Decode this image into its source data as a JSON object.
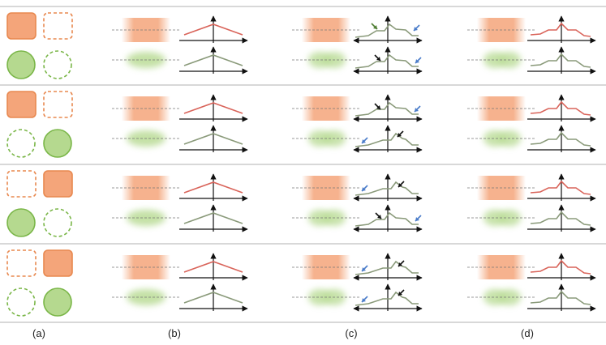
{
  "figure": {
    "column_labels": [
      "(a)",
      "(b)",
      "(c)",
      "(d)"
    ],
    "colors": {
      "orange_fill": "#f4a57a",
      "orange_stroke": "#e8884f",
      "green_fill": "#b5d98f",
      "green_stroke": "#7ab648",
      "red_line": "#d9645a",
      "gray_line": "#8a9a7a",
      "black_arrow": "#111111",
      "blue_arrow": "#4a7cc9",
      "dark_green_arrow": "#4e7d32",
      "separator": "#b0b0b0"
    },
    "rows": [
      {
        "square": "solid-left",
        "circle": "solid-left"
      },
      {
        "square": "solid-left",
        "circle": "solid-right"
      },
      {
        "square": "solid-right",
        "circle": "solid-left"
      },
      {
        "square": "solid-right",
        "circle": "solid-right"
      }
    ]
  }
}
